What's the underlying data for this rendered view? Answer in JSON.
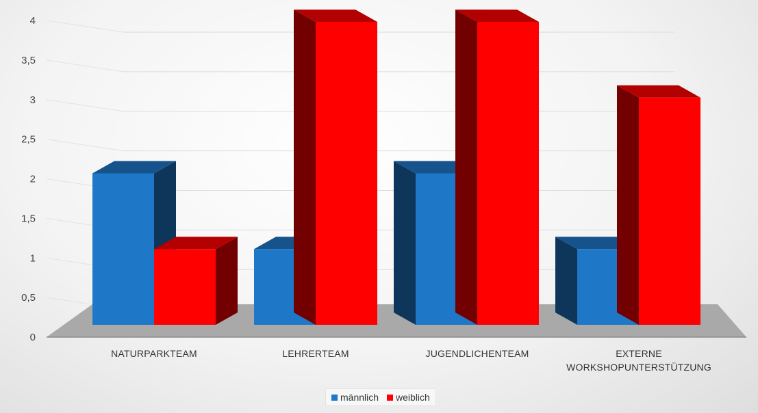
{
  "chart_data": {
    "type": "bar",
    "subtype": "3d-clustered-column",
    "title": "",
    "categories": [
      "NATURPARKTEAM",
      "LEHRERTEAM",
      "JUGENDLICHENTEAM",
      "EXTERNE WORKSHOPUNTERSTÜTZUNG"
    ],
    "series": [
      {
        "name": "männlich",
        "values": [
          2,
          1,
          2,
          1
        ],
        "color": "#1f77c8"
      },
      {
        "name": "weiblich",
        "values": [
          1,
          4,
          4,
          3
        ],
        "color": "#ff0000"
      }
    ],
    "ylim": [
      0,
      4
    ],
    "yticks": [
      "0",
      "0,5",
      "1",
      "1,5",
      "2",
      "2,5",
      "3",
      "3,5",
      "4"
    ],
    "grid": true,
    "legend_position": "bottom"
  }
}
